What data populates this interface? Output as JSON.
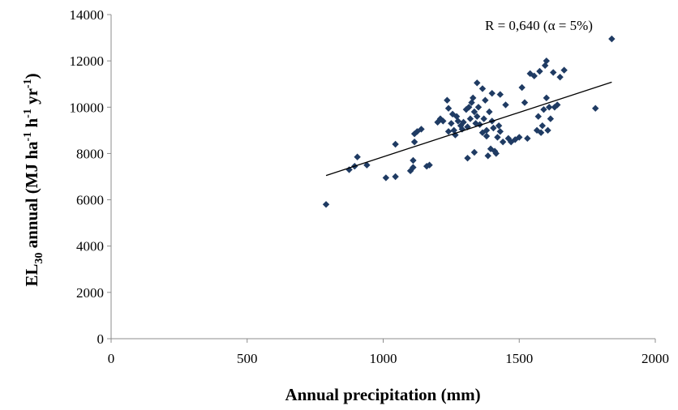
{
  "chart_data": {
    "type": "scatter",
    "title": "",
    "xlabel": "Annual precipitation (mm)",
    "ylabel_parts": {
      "main": "EL",
      "main_sub": "30",
      "mid": " annual (MJ ha",
      "sup1": "-1",
      "mid2": " h",
      "sup2": "-1",
      "mid3": " yr",
      "sup3": "-1",
      "end": ")"
    },
    "xlim": [
      0,
      2000
    ],
    "ylim": [
      0,
      14000
    ],
    "xticks": [
      0,
      500,
      1000,
      1500,
      2000
    ],
    "yticks": [
      0,
      2000,
      4000,
      6000,
      8000,
      10000,
      12000,
      14000
    ],
    "grid": false,
    "legend": "none",
    "marker_color": "#1f3b63",
    "trendline": {
      "x": [
        790,
        1840
      ],
      "y": [
        7050,
        11080
      ],
      "color": "#000000"
    },
    "annotation": "R = 0,640 (α = 5%)",
    "points": [
      {
        "x": 790,
        "y": 5800
      },
      {
        "x": 875,
        "y": 7300
      },
      {
        "x": 895,
        "y": 7450
      },
      {
        "x": 905,
        "y": 7850
      },
      {
        "x": 940,
        "y": 7500
      },
      {
        "x": 1010,
        "y": 6950
      },
      {
        "x": 1045,
        "y": 7000
      },
      {
        "x": 1045,
        "y": 8400
      },
      {
        "x": 1100,
        "y": 7250
      },
      {
        "x": 1110,
        "y": 7400
      },
      {
        "x": 1110,
        "y": 7700
      },
      {
        "x": 1115,
        "y": 8500
      },
      {
        "x": 1115,
        "y": 8850
      },
      {
        "x": 1125,
        "y": 8950
      },
      {
        "x": 1140,
        "y": 9050
      },
      {
        "x": 1160,
        "y": 7450
      },
      {
        "x": 1170,
        "y": 7500
      },
      {
        "x": 1200,
        "y": 9350
      },
      {
        "x": 1210,
        "y": 9500
      },
      {
        "x": 1220,
        "y": 9400
      },
      {
        "x": 1235,
        "y": 10300
      },
      {
        "x": 1240,
        "y": 9950
      },
      {
        "x": 1240,
        "y": 8950
      },
      {
        "x": 1250,
        "y": 9300
      },
      {
        "x": 1255,
        "y": 9700
      },
      {
        "x": 1260,
        "y": 9000
      },
      {
        "x": 1265,
        "y": 8800
      },
      {
        "x": 1270,
        "y": 9600
      },
      {
        "x": 1275,
        "y": 9400
      },
      {
        "x": 1285,
        "y": 9200
      },
      {
        "x": 1290,
        "y": 9050
      },
      {
        "x": 1295,
        "y": 9350
      },
      {
        "x": 1305,
        "y": 9900
      },
      {
        "x": 1310,
        "y": 9150
      },
      {
        "x": 1310,
        "y": 7800
      },
      {
        "x": 1315,
        "y": 10000
      },
      {
        "x": 1320,
        "y": 9500
      },
      {
        "x": 1325,
        "y": 10200
      },
      {
        "x": 1330,
        "y": 10400
      },
      {
        "x": 1335,
        "y": 8050
      },
      {
        "x": 1335,
        "y": 9800
      },
      {
        "x": 1340,
        "y": 9300
      },
      {
        "x": 1345,
        "y": 9600
      },
      {
        "x": 1345,
        "y": 11050
      },
      {
        "x": 1350,
        "y": 10000
      },
      {
        "x": 1355,
        "y": 9250
      },
      {
        "x": 1365,
        "y": 8900
      },
      {
        "x": 1365,
        "y": 10800
      },
      {
        "x": 1370,
        "y": 9500
      },
      {
        "x": 1375,
        "y": 10300
      },
      {
        "x": 1380,
        "y": 9000
      },
      {
        "x": 1380,
        "y": 8750
      },
      {
        "x": 1385,
        "y": 7900
      },
      {
        "x": 1390,
        "y": 9800
      },
      {
        "x": 1395,
        "y": 8200
      },
      {
        "x": 1400,
        "y": 9400
      },
      {
        "x": 1400,
        "y": 10600
      },
      {
        "x": 1405,
        "y": 9100
      },
      {
        "x": 1410,
        "y": 8100
      },
      {
        "x": 1415,
        "y": 8000
      },
      {
        "x": 1420,
        "y": 8700
      },
      {
        "x": 1425,
        "y": 9200
      },
      {
        "x": 1430,
        "y": 10550
      },
      {
        "x": 1430,
        "y": 8950
      },
      {
        "x": 1440,
        "y": 8500
      },
      {
        "x": 1450,
        "y": 10100
      },
      {
        "x": 1460,
        "y": 8650
      },
      {
        "x": 1470,
        "y": 8500
      },
      {
        "x": 1485,
        "y": 8600
      },
      {
        "x": 1500,
        "y": 8700
      },
      {
        "x": 1510,
        "y": 10850
      },
      {
        "x": 1520,
        "y": 10200
      },
      {
        "x": 1530,
        "y": 8650
      },
      {
        "x": 1540,
        "y": 11450
      },
      {
        "x": 1555,
        "y": 11350
      },
      {
        "x": 1565,
        "y": 9000
      },
      {
        "x": 1570,
        "y": 9600
      },
      {
        "x": 1575,
        "y": 11550
      },
      {
        "x": 1580,
        "y": 8900
      },
      {
        "x": 1585,
        "y": 9200
      },
      {
        "x": 1590,
        "y": 9900
      },
      {
        "x": 1595,
        "y": 11800
      },
      {
        "x": 1600,
        "y": 12000
      },
      {
        "x": 1600,
        "y": 10400
      },
      {
        "x": 1605,
        "y": 9000
      },
      {
        "x": 1610,
        "y": 10000
      },
      {
        "x": 1615,
        "y": 9500
      },
      {
        "x": 1625,
        "y": 11500
      },
      {
        "x": 1630,
        "y": 10000
      },
      {
        "x": 1640,
        "y": 10100
      },
      {
        "x": 1650,
        "y": 11300
      },
      {
        "x": 1665,
        "y": 11600
      },
      {
        "x": 1780,
        "y": 9950
      },
      {
        "x": 1840,
        "y": 12950
      }
    ]
  }
}
